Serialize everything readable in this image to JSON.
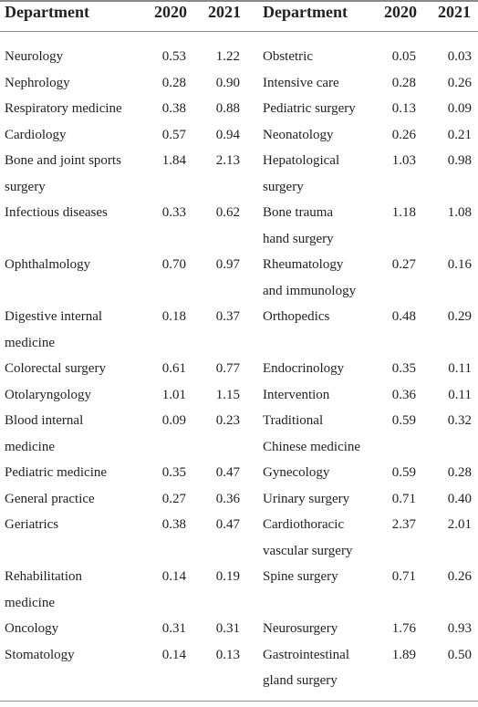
{
  "headers": {
    "department_left": "Department",
    "y2020_left": "2020",
    "y2021_left": "2021",
    "department_right": "Department",
    "y2020_right": "2020",
    "y2021_right": "2021"
  },
  "rows": [
    {
      "left": {
        "dept": [
          "Neurology"
        ],
        "v2020": "0.53",
        "v2021": "1.22"
      },
      "right": {
        "dept": [
          "Obstetric"
        ],
        "v2020": "0.05",
        "v2021": "0.03"
      }
    },
    {
      "left": {
        "dept": [
          "Nephrology"
        ],
        "v2020": "0.28",
        "v2021": "0.90"
      },
      "right": {
        "dept": [
          "Intensive care"
        ],
        "v2020": "0.28",
        "v2021": "0.26"
      }
    },
    {
      "left": {
        "dept": [
          "Respiratory medicine"
        ],
        "v2020": "0.38",
        "v2021": "0.88"
      },
      "right": {
        "dept": [
          "Pediatric surgery"
        ],
        "v2020": "0.13",
        "v2021": "0.09"
      }
    },
    {
      "left": {
        "dept": [
          "Cardiology"
        ],
        "v2020": "0.57",
        "v2021": "0.94"
      },
      "right": {
        "dept": [
          "Neonatology"
        ],
        "v2020": "0.26",
        "v2021": "0.21"
      }
    },
    {
      "left": {
        "dept": [
          "Bone and joint sports",
          "surgery"
        ],
        "v2020": "1.84",
        "v2021": "2.13"
      },
      "right": {
        "dept": [
          "Hepatological",
          "surgery"
        ],
        "v2020": "1.03",
        "v2021": "0.98"
      }
    },
    {
      "left": {
        "dept": [
          "Infectious diseases"
        ],
        "v2020": "0.33",
        "v2021": "0.62"
      },
      "right": {
        "dept": [
          "Bone trauma",
          "hand surgery"
        ],
        "v2020": "1.18",
        "v2021": "1.08"
      }
    },
    {
      "left": {
        "dept": [
          "Ophthalmology"
        ],
        "v2020": "0.70",
        "v2021": "0.97"
      },
      "right": {
        "dept": [
          "Rheumatology",
          "and immunology"
        ],
        "v2020": "0.27",
        "v2021": "0.16"
      }
    },
    {
      "left": {
        "dept": [
          "Digestive internal",
          "medicine"
        ],
        "v2020": "0.18",
        "v2021": "0.37"
      },
      "right": {
        "dept": [
          "Orthopedics"
        ],
        "v2020": "0.48",
        "v2021": "0.29"
      }
    },
    {
      "left": {
        "dept": [
          "Colorectal surgery"
        ],
        "v2020": "0.61",
        "v2021": "0.77"
      },
      "right": {
        "dept": [
          "Endocrinology"
        ],
        "v2020": "0.35",
        "v2021": "0.11"
      }
    },
    {
      "left": {
        "dept": [
          "Otolaryngology"
        ],
        "v2020": "1.01",
        "v2021": "1.15"
      },
      "right": {
        "dept": [
          "Intervention"
        ],
        "v2020": "0.36",
        "v2021": "0.11"
      }
    },
    {
      "left": {
        "dept": [
          "Blood internal",
          "medicine"
        ],
        "v2020": "0.09",
        "v2021": "0.23"
      },
      "right": {
        "dept": [
          "Traditional",
          "Chinese medicine"
        ],
        "v2020": "0.59",
        "v2021": "0.32"
      }
    },
    {
      "left": {
        "dept": [
          "Pediatric medicine"
        ],
        "v2020": "0.35",
        "v2021": "0.47"
      },
      "right": {
        "dept": [
          "Gynecology"
        ],
        "v2020": "0.59",
        "v2021": "0.28"
      }
    },
    {
      "left": {
        "dept": [
          "General practice"
        ],
        "v2020": "0.27",
        "v2021": "0.36"
      },
      "right": {
        "dept": [
          "Urinary surgery"
        ],
        "v2020": "0.71",
        "v2021": "0.40"
      }
    },
    {
      "left": {
        "dept": [
          "Geriatrics"
        ],
        "v2020": "0.38",
        "v2021": "0.47"
      },
      "right": {
        "dept": [
          "Cardiothoracic",
          "vascular surgery"
        ],
        "v2020": "2.37",
        "v2021": "2.01"
      }
    },
    {
      "left": {
        "dept": [
          "Rehabilitation",
          "medicine"
        ],
        "v2020": "0.14",
        "v2021": "0.19"
      },
      "right": {
        "dept": [
          "Spine surgery"
        ],
        "v2020": "0.71",
        "v2021": "0.26"
      }
    },
    {
      "left": {
        "dept": [
          "Oncology"
        ],
        "v2020": "0.31",
        "v2021": "0.31"
      },
      "right": {
        "dept": [
          "Neurosurgery"
        ],
        "v2020": "1.76",
        "v2021": "0.93"
      }
    },
    {
      "left": {
        "dept": [
          "Stomatology"
        ],
        "v2020": "0.14",
        "v2021": "0.13"
      },
      "right": {
        "dept": [
          "Gastrointestinal",
          "gland surgery"
        ],
        "v2020": "1.89",
        "v2021": "0.50"
      }
    }
  ]
}
